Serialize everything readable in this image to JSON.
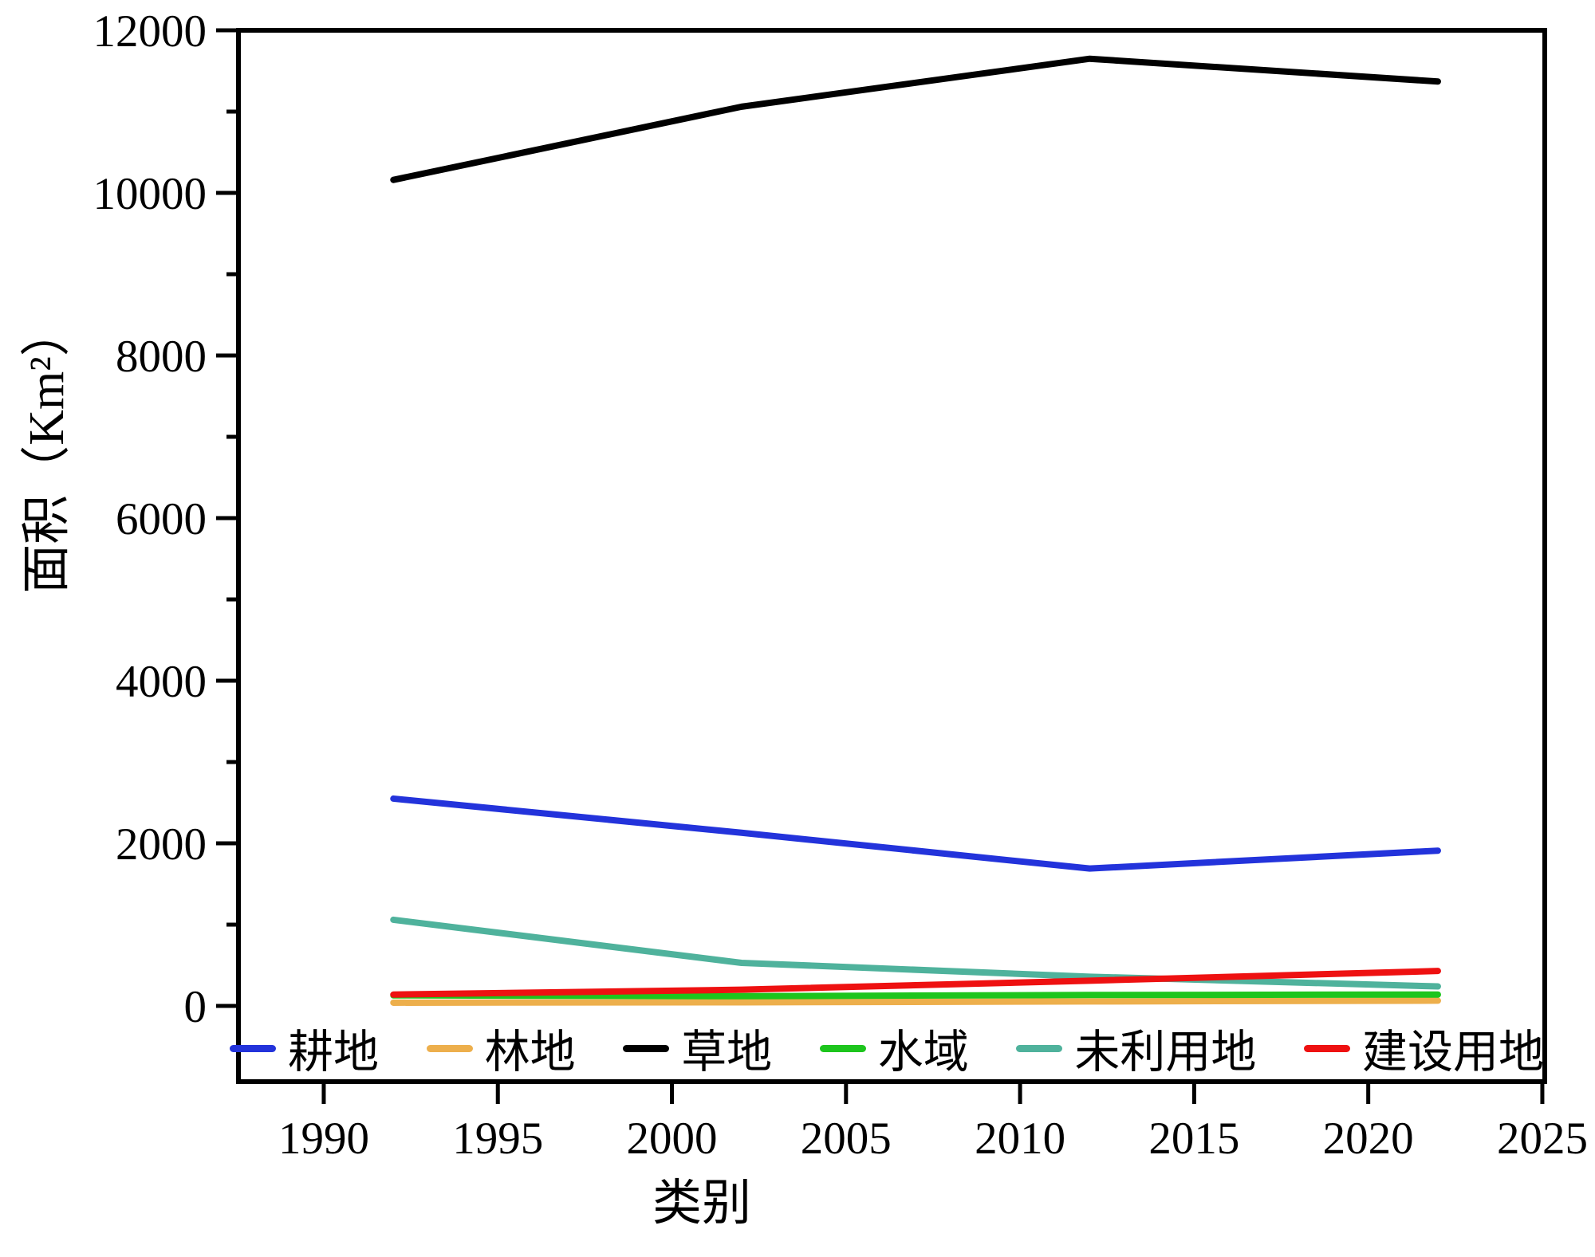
{
  "figure": {
    "background": "#ffffff"
  },
  "chart_data": {
    "type": "line",
    "title": "",
    "xlabel": "类别",
    "ylabel": "面积（Km²）",
    "x": [
      1992,
      2002,
      2012,
      2022
    ],
    "series": [
      {
        "name": "耕地",
        "color": "#2333DB",
        "values": [
          2550,
          2130,
          1690,
          1910
        ]
      },
      {
        "name": "林地",
        "color": "#EDAF4C",
        "values": [
          40,
          45,
          55,
          65
        ]
      },
      {
        "name": "草地",
        "color": "#000000",
        "values": [
          10160,
          11060,
          11650,
          11370
        ]
      },
      {
        "name": "水域",
        "color": "#1DC51D",
        "values": [
          130,
          120,
          135,
          140
        ]
      },
      {
        "name": "未利用地",
        "color": "#4FB29C",
        "values": [
          1060,
          530,
          360,
          240
        ]
      },
      {
        "name": "建设用地",
        "color": "#EE1111",
        "values": [
          140,
          200,
          310,
          430
        ]
      }
    ],
    "x_ticks": [
      1990,
      1995,
      2000,
      2005,
      2010,
      2015,
      2020,
      2025
    ],
    "y_ticks": [
      0,
      2000,
      4000,
      6000,
      8000,
      10000,
      12000
    ],
    "y_minor_ticks": [
      1000,
      3000,
      5000,
      7000,
      9000,
      11000
    ],
    "xlim": [
      1987.55,
      2025.07
    ],
    "ylim": [
      -931,
      12000
    ],
    "grid": false,
    "legend_position": "bottom-inside",
    "axis_color": "#000000"
  }
}
